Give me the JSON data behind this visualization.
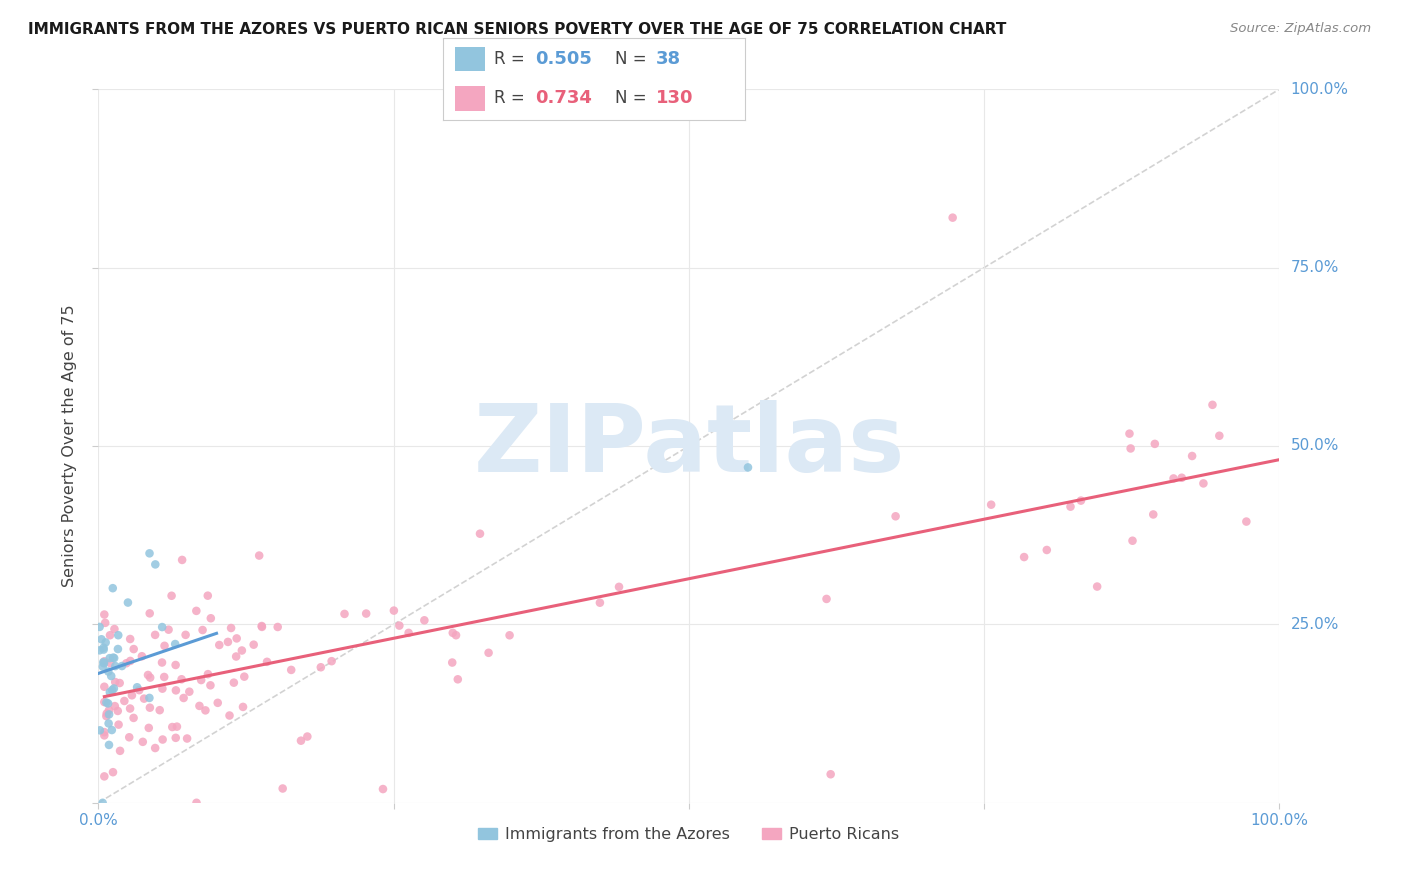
{
  "title": "IMMIGRANTS FROM THE AZORES VS PUERTO RICAN SENIORS POVERTY OVER THE AGE OF 75 CORRELATION CHART",
  "source": "Source: ZipAtlas.com",
  "ylabel": "Seniors Poverty Over the Age of 75",
  "color_azores": "#92c5de",
  "color_pr": "#f4a6c0",
  "color_trendline_azores": "#5b9bd5",
  "color_trendline_pr": "#e8607a",
  "color_diagonal": "#c0c0c0",
  "color_right_axis": "#5b9bd5",
  "color_grid": "#e8e8e8",
  "legend_r1": "0.505",
  "legend_n1": "38",
  "legend_r2": "0.734",
  "legend_n2": "130",
  "watermark_text": "ZIPatlas",
  "watermark_color": "#dce9f5",
  "background_color": "#ffffff",
  "pr_intercept": 0.155,
  "pr_slope": 0.315,
  "az_intercept": 0.195,
  "az_slope": 0.6
}
